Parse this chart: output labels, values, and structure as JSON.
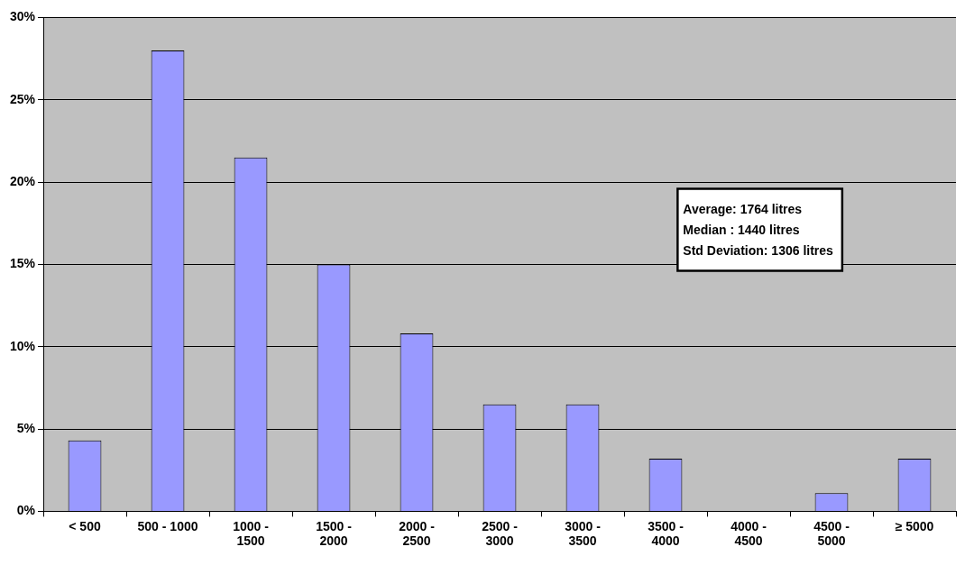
{
  "chart_data": {
    "type": "bar",
    "categories": [
      "< 500",
      "500 - 1000",
      "1000 - 1500",
      "1500 - 2000",
      "2000 - 2500",
      "2500 - 3000",
      "3000 - 3500",
      "3500 - 4000",
      "4000 - 4500",
      "4500 - 5000",
      "≥ 5000"
    ],
    "values": [
      4.3,
      28.0,
      21.5,
      15.0,
      10.8,
      6.5,
      6.5,
      3.2,
      0,
      1.1,
      3.2
    ],
    "color": "#9999ff",
    "ylim": [
      0,
      30
    ],
    "yticks": [
      {
        "value": 0,
        "label": "0%"
      },
      {
        "value": 5,
        "label": "5%"
      },
      {
        "value": 10,
        "label": "10%"
      },
      {
        "value": 15,
        "label": "15%"
      },
      {
        "value": 20,
        "label": "20%"
      },
      {
        "value": 25,
        "label": "25%"
      },
      {
        "value": 30,
        "label": "30%"
      }
    ],
    "grid": "y",
    "legend": false,
    "annotations": [
      "Average: 1764 litres",
      "Median : 1440 litres",
      "Std Deviation: 1306 litres"
    ]
  }
}
